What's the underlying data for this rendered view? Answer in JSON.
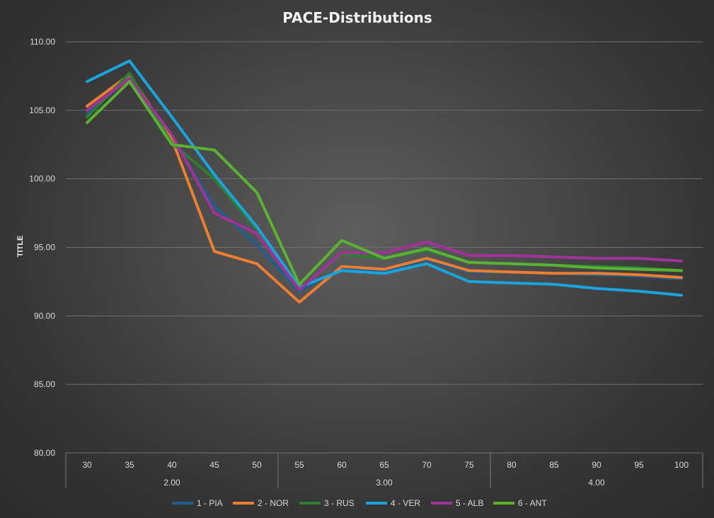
{
  "chart_data": {
    "type": "line",
    "title": "PACE-Distributions",
    "ylabel": "TITLE",
    "xlabel": "",
    "ylim": [
      80,
      110
    ],
    "yticks": [
      "80.00",
      "85.00",
      "90.00",
      "95.00",
      "100.00",
      "105.00",
      "110.00"
    ],
    "grid": true,
    "legend": "bottom",
    "categories": [
      "30",
      "35",
      "40",
      "45",
      "50",
      "55",
      "60",
      "65",
      "70",
      "75",
      "80",
      "85",
      "90",
      "95",
      "100"
    ],
    "groups": [
      {
        "label": "2.00",
        "count": 5
      },
      {
        "label": "3.00",
        "count": 5
      },
      {
        "label": "4.00",
        "count": 5
      }
    ],
    "series": [
      {
        "name": "1 - PIA",
        "color": "#1f5f8b",
        "values": [
          104.7,
          107.4,
          103.0,
          98.0,
          95.2,
          91.8,
          93.5,
          93.3,
          94.1,
          93.2,
          93.2,
          93.1,
          93.0,
          92.9,
          92.7
        ]
      },
      {
        "name": "2 - NOR",
        "color": "#ed7d31",
        "values": [
          105.3,
          107.6,
          102.9,
          94.7,
          93.8,
          91.0,
          93.6,
          93.4,
          94.2,
          93.3,
          93.2,
          93.1,
          93.1,
          93.0,
          92.8
        ]
      },
      {
        "name": "3 - RUS",
        "color": "#2e7d32",
        "values": [
          104.5,
          107.7,
          102.6,
          100.0,
          96.3,
          91.9,
          94.5,
          94.2,
          94.8,
          93.9,
          93.8,
          93.7,
          93.6,
          93.5,
          93.3
        ]
      },
      {
        "name": "4 - VER",
        "color": "#1aa3dc",
        "values": [
          107.1,
          108.6,
          104.5,
          100.3,
          96.5,
          92.1,
          93.3,
          93.1,
          93.8,
          92.5,
          92.4,
          92.3,
          92.0,
          91.8,
          91.5
        ]
      },
      {
        "name": "5 - ALB",
        "color": "#a0329a",
        "values": [
          105.0,
          107.3,
          103.2,
          97.5,
          96.0,
          91.9,
          94.6,
          94.6,
          95.4,
          94.4,
          94.4,
          94.3,
          94.2,
          94.2,
          94.0
        ]
      },
      {
        "name": "6 - ANT",
        "color": "#5ab232",
        "values": [
          104.1,
          107.1,
          102.5,
          102.1,
          99.0,
          92.3,
          95.5,
          94.2,
          94.9,
          93.9,
          93.8,
          93.7,
          93.5,
          93.4,
          93.3
        ]
      }
    ]
  }
}
